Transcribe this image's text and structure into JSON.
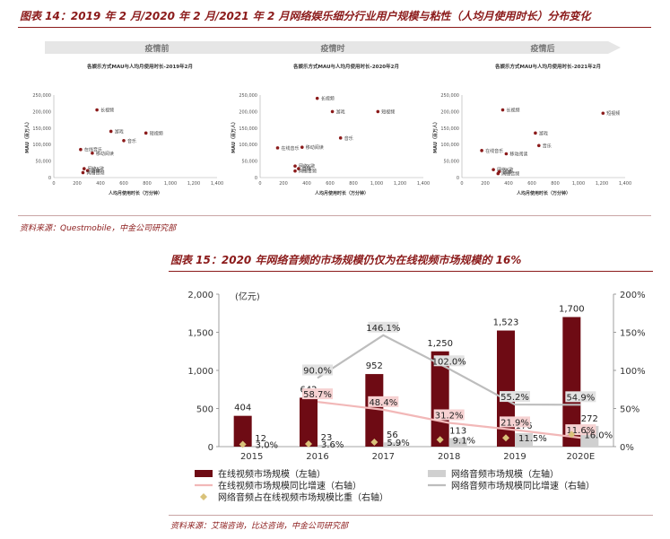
{
  "figure14": {
    "title": "图表 14：2019 年 2 月/2020 年 2 月/2021 年 2 月网络娱乐细分行业用户规模与粘性（人均月使用时长）分布变化",
    "phases": [
      "疫情前",
      "疫情时",
      "疫情后"
    ],
    "source": "资料来源：Questmobile，中金公司研究部"
  },
  "figure15": {
    "title": "图表 15：2020 年网络音频的市场规模仍仅为在线视频市场规模的 16%",
    "unit_label": "(亿元)",
    "source": "资料来源：艾瑞咨询，比达咨询，中金公司研究部",
    "legend": {
      "video_size": "在线视频市场规模（左轴）",
      "audio_size": "网络音频市场规模（左轴）",
      "video_growth": "在线视频市场规模同比增速（右轴）",
      "audio_growth": "网络音频市场规模同比增速（右轴）",
      "ratio": "网络音频占在线视频市场规模比重（右轴）"
    }
  },
  "chart_data": [
    {
      "type": "scatter",
      "title": "各娱乐方式MAU与人均月使用时长-2019年2月",
      "xlabel": "人均月使用时长（万分钟）",
      "ylabel": "MAU（百万人）",
      "xlim": [
        0,
        1400
      ],
      "ylim": [
        0,
        250000
      ],
      "xticks": [
        "0",
        "200",
        "400",
        "600",
        "800",
        "1,000",
        "1,200",
        "1,400"
      ],
      "yticks": [
        "0",
        "50,000",
        "100,000",
        "150,000",
        "200,000",
        "250,000"
      ],
      "points": [
        {
          "label": "长视频",
          "x": 370,
          "y": 205000
        },
        {
          "label": "游戏",
          "x": 490,
          "y": 140000
        },
        {
          "label": "短视频",
          "x": 790,
          "y": 135000
        },
        {
          "label": "音乐",
          "x": 600,
          "y": 112000
        },
        {
          "label": "在线音乐",
          "x": 230,
          "y": 85000
        },
        {
          "label": "移动阅读",
          "x": 330,
          "y": 74000
        },
        {
          "label": "网络K歌",
          "x": 260,
          "y": 27000
        },
        {
          "label": "直播",
          "x": 290,
          "y": 21000
        },
        {
          "label": "网络音频",
          "x": 250,
          "y": 15000
        }
      ]
    },
    {
      "type": "scatter",
      "title": "各娱乐方式MAU与人均月使用时长-2020年2月",
      "xlabel": "人均月使用时长（万分钟）",
      "ylabel": "MAU（百万人）",
      "xlim": [
        0,
        1400
      ],
      "ylim": [
        0,
        250000
      ],
      "xticks": [
        "0",
        "200",
        "400",
        "600",
        "800",
        "1,000",
        "1,200",
        "1,400"
      ],
      "yticks": [
        "0",
        "50,000",
        "100,000",
        "150,000",
        "200,000",
        "250,000"
      ],
      "points": [
        {
          "label": "长视频",
          "x": 490,
          "y": 240000
        },
        {
          "label": "游戏",
          "x": 620,
          "y": 200000
        },
        {
          "label": "短视频",
          "x": 1010,
          "y": 200000
        },
        {
          "label": "音乐",
          "x": 690,
          "y": 120000
        },
        {
          "label": "在线音乐",
          "x": 150,
          "y": 90000
        },
        {
          "label": "移动阅读",
          "x": 360,
          "y": 92000
        },
        {
          "label": "网络K歌",
          "x": 300,
          "y": 35000
        },
        {
          "label": "直播",
          "x": 330,
          "y": 27000
        },
        {
          "label": "网络音频",
          "x": 300,
          "y": 20000
        }
      ]
    },
    {
      "type": "scatter",
      "title": "各娱乐方式MAU与人均月使用时长-2021年2月",
      "xlabel": "人均月使用时长（万分钟）",
      "ylabel": "MAU（百万人）",
      "xlim": [
        0,
        1400
      ],
      "ylim": [
        0,
        250000
      ],
      "xticks": [
        "0",
        "200",
        "400",
        "600",
        "800",
        "1,000",
        "1,200",
        "1,400"
      ],
      "yticks": [
        "0",
        "50,000",
        "100,000",
        "150,000",
        "200,000",
        "250,000"
      ],
      "points": [
        {
          "label": "长视频",
          "x": 350,
          "y": 205000
        },
        {
          "label": "短视频",
          "x": 1210,
          "y": 195000
        },
        {
          "label": "游戏",
          "x": 630,
          "y": 135000
        },
        {
          "label": "音乐",
          "x": 660,
          "y": 97000
        },
        {
          "label": "在线音乐",
          "x": 170,
          "y": 82000
        },
        {
          "label": "移动阅读",
          "x": 380,
          "y": 72000
        },
        {
          "label": "网络K歌",
          "x": 270,
          "y": 24000
        },
        {
          "label": "直播",
          "x": 320,
          "y": 18000
        },
        {
          "label": "网络音频",
          "x": 310,
          "y": 12000
        }
      ]
    },
    {
      "type": "bar",
      "categories": [
        "2015",
        "2016",
        "2017",
        "2018",
        "2019",
        "2020E"
      ],
      "ylim_left": [
        0,
        2000
      ],
      "ylim_right": [
        0,
        200
      ],
      "yticks_left": [
        "0",
        "500",
        "1,000",
        "1,500",
        "2,000"
      ],
      "yticks_right": [
        "0%",
        "50%",
        "100%",
        "150%",
        "200%"
      ],
      "series": [
        {
          "name": "在线视频市场规模（左轴）",
          "type": "bar",
          "axis": "left",
          "color": "#6e0b14",
          "values": [
            404,
            642,
            952,
            1250,
            1523,
            1700
          ],
          "labels": [
            "404",
            "642",
            "952",
            "1,250",
            "1,523",
            "1,700"
          ]
        },
        {
          "name": "网络音频市场规模（左轴）",
          "type": "bar",
          "axis": "left",
          "color": "#d0d0d0",
          "values": [
            12,
            23,
            56,
            113,
            176,
            272
          ],
          "labels": [
            "12",
            "23",
            "56",
            "113",
            "176",
            "272"
          ]
        },
        {
          "name": "在线视频市场规模同比增速（右轴）",
          "type": "line",
          "axis": "right",
          "color": "#f2b8b8",
          "values": [
            null,
            58.7,
            48.4,
            31.2,
            21.9,
            11.6
          ],
          "labels": [
            "",
            "58.7%",
            "48.4%",
            "31.2%",
            "21.9%",
            "11.6%"
          ]
        },
        {
          "name": "网络音频市场规模同比增速（右轴）",
          "type": "line",
          "axis": "right",
          "color": "#bdbdbd",
          "values": [
            null,
            90.0,
            146.1,
            102.0,
            55.2,
            54.9
          ],
          "labels": [
            "",
            "90.0%",
            "146.1%",
            "102.0%",
            "55.2%",
            "54.9%"
          ]
        },
        {
          "name": "网络音频占在线视频市场规模比重（右轴）",
          "type": "scatter",
          "axis": "right",
          "color": "#d9c27a",
          "values": [
            3.0,
            3.6,
            5.9,
            9.1,
            11.5,
            16.0
          ],
          "labels": [
            "3.0%",
            "3.6%",
            "5.9%",
            "9.1%",
            "11.5%",
            "16.0%"
          ]
        }
      ]
    }
  ]
}
